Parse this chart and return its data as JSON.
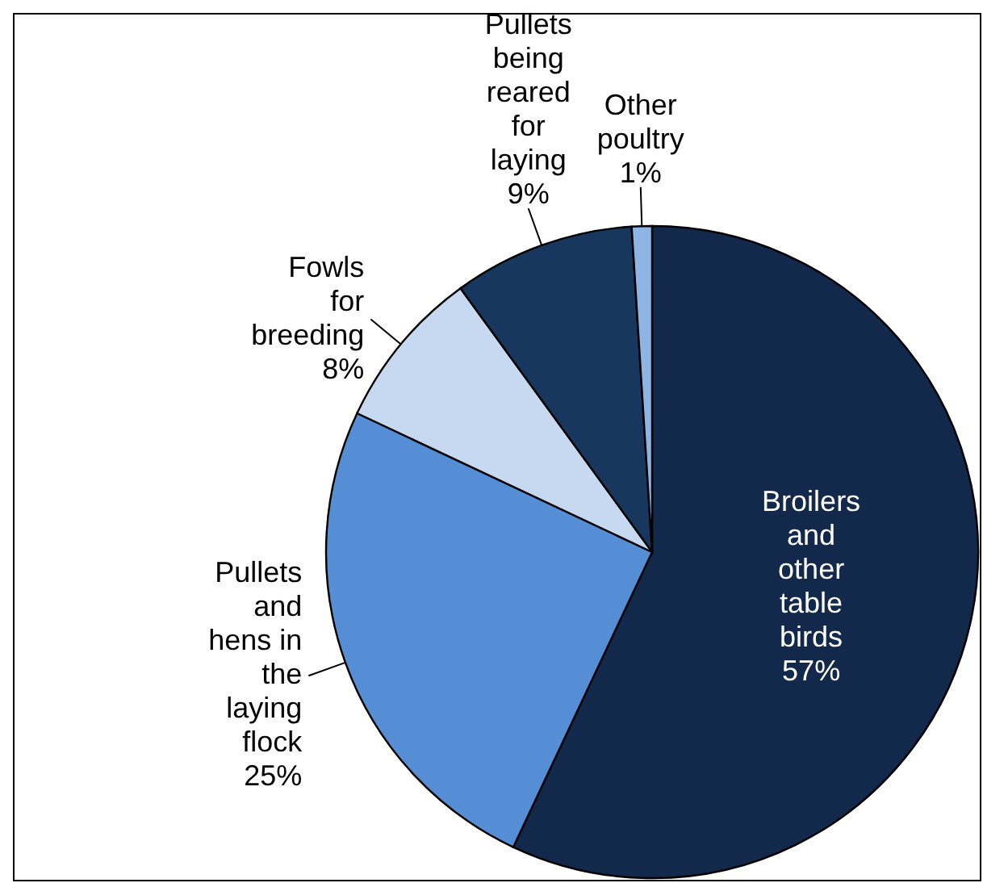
{
  "chart_data": {
    "type": "pie",
    "categories": [
      "Broilers and other table birds",
      "Pullets and hens in the laying flock",
      "Fowls for breeding",
      "Pullets being reared for laying",
      "Other poultry"
    ],
    "values": [
      57,
      25,
      8,
      9,
      1
    ],
    "value_labels": [
      "57%",
      "25%",
      "8%",
      "9%",
      "1%"
    ],
    "colors": [
      "#13294b",
      "#558ed5",
      "#c6d9f1",
      "#17375e",
      "#8eb4e3"
    ]
  }
}
